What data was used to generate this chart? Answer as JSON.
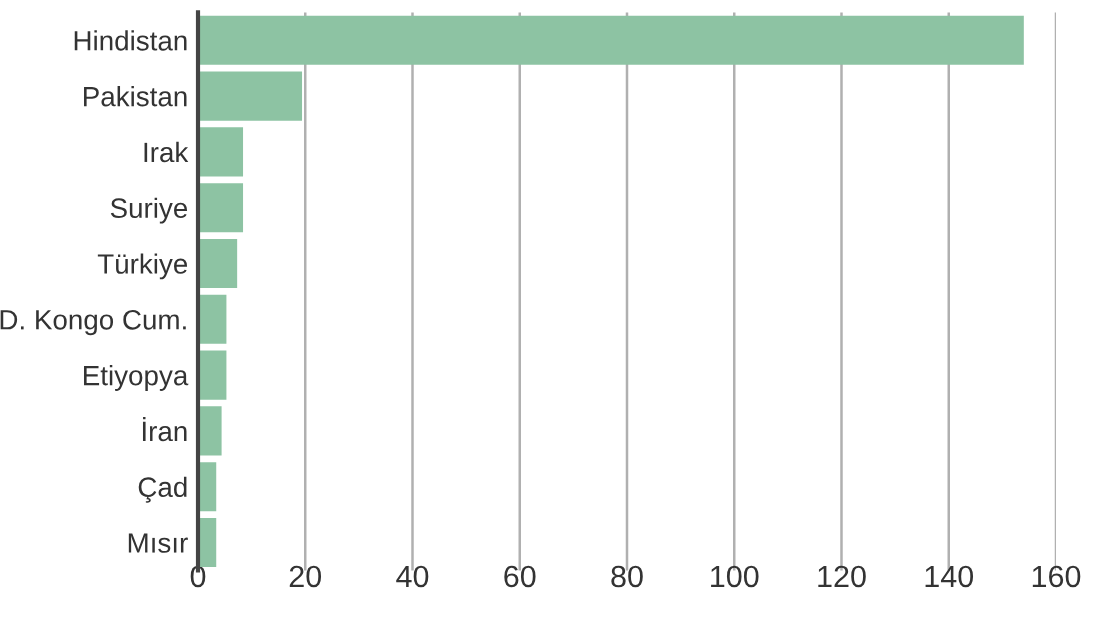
{
  "chart_data": {
    "type": "bar",
    "orientation": "horizontal",
    "categories": [
      "Hindistan",
      "Pakistan",
      "Irak",
      "Suriye",
      "Türkiye",
      "D. Kongo Cum.",
      "Etiyopya",
      "İran",
      "Çad",
      "Mısır"
    ],
    "values": [
      154,
      19.4,
      8.4,
      8.4,
      7.3,
      5.3,
      5.3,
      4.4,
      3.4,
      3.4
    ],
    "color": "#8dc3a3",
    "xlim": [
      0,
      160
    ],
    "xticks": [
      0,
      20,
      40,
      60,
      80,
      100,
      120,
      140,
      160
    ],
    "grid": "x"
  }
}
